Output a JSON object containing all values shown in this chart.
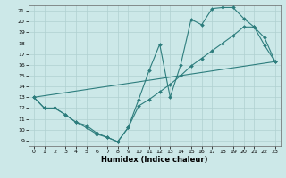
{
  "title": "",
  "xlabel": "Humidex (Indice chaleur)",
  "xlim": [
    -0.5,
    23.5
  ],
  "ylim": [
    8.5,
    21.5
  ],
  "xticks": [
    0,
    1,
    2,
    3,
    4,
    5,
    6,
    7,
    8,
    9,
    10,
    11,
    12,
    13,
    14,
    15,
    16,
    17,
    18,
    19,
    20,
    21,
    22,
    23
  ],
  "yticks": [
    9,
    10,
    11,
    12,
    13,
    14,
    15,
    16,
    17,
    18,
    19,
    20,
    21
  ],
  "bg_color": "#cce8e8",
  "line_color": "#2d7d7d",
  "grid_color": "#b0d0d0",
  "lines": [
    {
      "x": [
        0,
        1,
        2,
        3,
        4,
        5,
        6,
        7,
        8,
        9,
        10,
        11,
        12,
        13,
        14,
        15,
        16,
        17,
        18,
        19,
        20,
        21,
        22,
        23
      ],
      "y": [
        13,
        12,
        12,
        11.4,
        10.7,
        10.4,
        9.7,
        9.3,
        8.9,
        10.2,
        12.8,
        15.5,
        17.9,
        13.0,
        16.0,
        20.2,
        19.7,
        21.2,
        21.3,
        21.3,
        20.3,
        19.5,
        17.8,
        16.3
      ]
    },
    {
      "x": [
        0,
        1,
        2,
        3,
        4,
        5,
        6,
        7,
        8,
        9,
        10,
        11,
        12,
        13,
        14,
        15,
        16,
        17,
        18,
        19,
        20,
        21,
        22,
        23
      ],
      "y": [
        13,
        12,
        12,
        11.4,
        10.7,
        10.2,
        9.6,
        9.3,
        8.9,
        10.2,
        12.2,
        12.8,
        13.5,
        14.2,
        15.0,
        15.9,
        16.6,
        17.3,
        18.0,
        18.7,
        19.5,
        19.5,
        18.5,
        16.3
      ]
    },
    {
      "x": [
        0,
        23
      ],
      "y": [
        13,
        16.3
      ]
    }
  ]
}
